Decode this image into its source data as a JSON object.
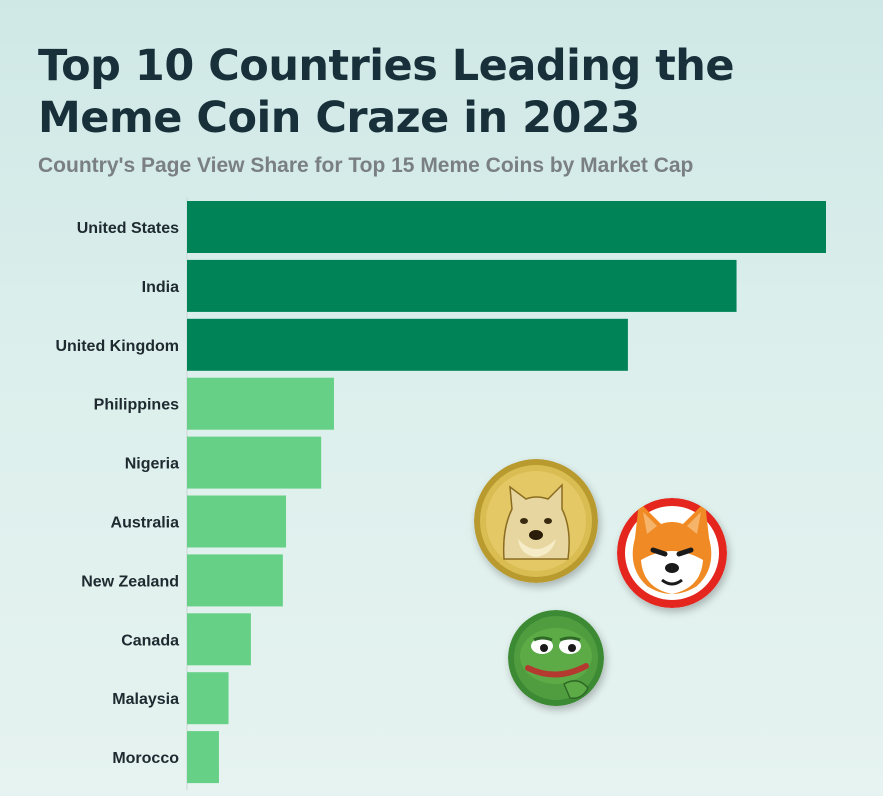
{
  "header": {
    "title": "Top 10 Countries Leading the Meme Coin Craze in 2023",
    "subtitle": "Country's Page View Share for Top 15 Meme Coins by Market Cap"
  },
  "chart_data": {
    "type": "bar",
    "orientation": "horizontal",
    "title": "Top 10 Countries Leading the Meme Coin Craze in 2023",
    "subtitle": "Country's Page View Share for Top 15 Meme Coins by Market Cap",
    "xlabel": "",
    "ylabel": "",
    "categories": [
      "United States",
      "India",
      "United Kingdom",
      "Philippines",
      "Nigeria",
      "Australia",
      "New Zealand",
      "Canada",
      "Malaysia",
      "Morocco"
    ],
    "values": [
      20.0,
      17.2,
      13.8,
      4.6,
      4.2,
      3.1,
      3.0,
      2.0,
      1.3,
      1.0
    ],
    "xlim": [
      0,
      20
    ],
    "grid": false,
    "legend": "none",
    "colors": {
      "top_three": "#008457",
      "others": "#66d186",
      "label": "#1e2a30"
    },
    "highlight_count": 3
  },
  "decorations": {
    "icons": [
      "doge-coin-icon",
      "shiba-inu-coin-icon",
      "pepe-coin-icon"
    ]
  }
}
